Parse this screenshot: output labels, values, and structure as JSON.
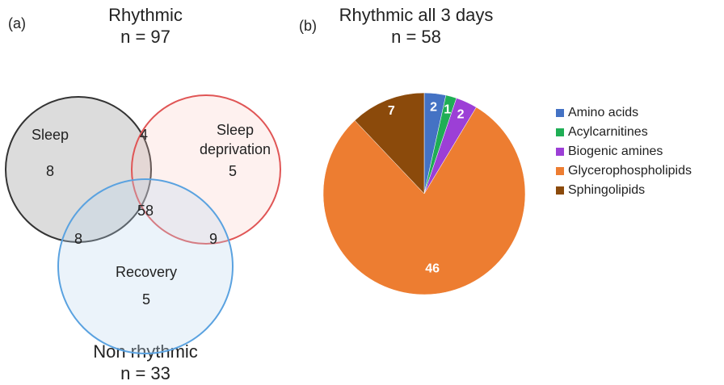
{
  "chart_data": [
    {
      "type": "venn",
      "panel": "(a)",
      "title": "Rhythmic",
      "subtitle": "n = 97",
      "bottom_title": "Non rhythmic",
      "bottom_subtitle": "n = 33",
      "sets": [
        {
          "name": "Sleep",
          "color": "#333333"
        },
        {
          "name": "Sleep deprivation",
          "color": "#e05555"
        },
        {
          "name": "Recovery",
          "color": "#5aa2e0"
        }
      ],
      "values": [
        8,
        5,
        5,
        4,
        8,
        9,
        58
      ]
    },
    {
      "type": "pie",
      "panel": "(b)",
      "title": "Rhythmic all 3 days",
      "subtitle": "n = 58",
      "categories": [
        "Amino acids",
        "Acylcarnitines",
        "Biogenic amines",
        "Glycerophospholipids",
        "Sphingolipids"
      ],
      "values": [
        2,
        1,
        2,
        46,
        7
      ],
      "colors": [
        "#4472c4",
        "#1fae55",
        "#9c3fd6",
        "#ed7d31",
        "#8b4a0b"
      ]
    }
  ]
}
